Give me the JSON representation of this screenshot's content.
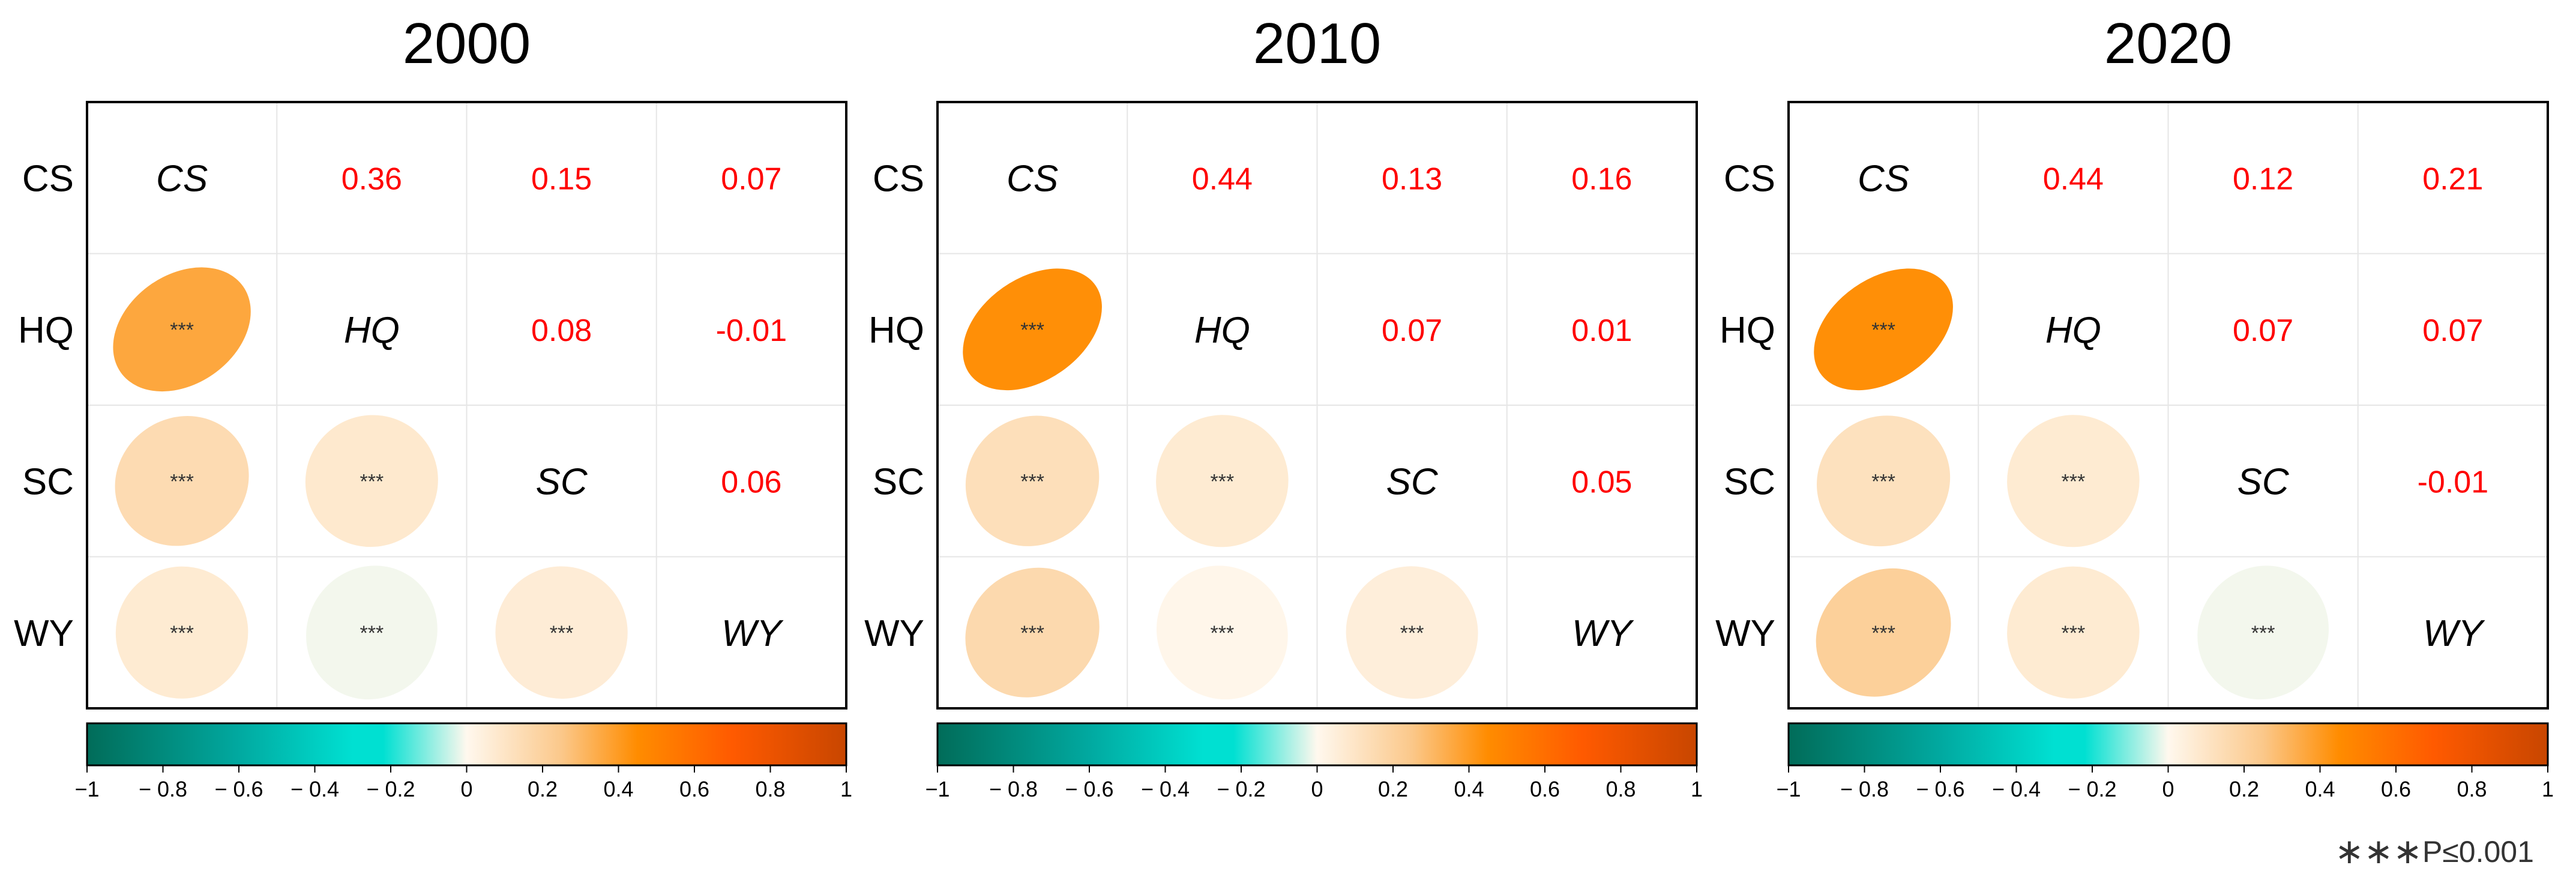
{
  "chart_data": [
    {
      "type": "heatmap",
      "title": "2000",
      "variables": [
        "CS",
        "HQ",
        "SC",
        "WY"
      ],
      "row_labels": [
        "CS",
        "HQ",
        "SC",
        "WY"
      ],
      "diagonal_labels": [
        "CS",
        "HQ",
        "SC",
        "WY"
      ],
      "upper_coefficients": [
        {
          "row": 0,
          "col": 1,
          "value": 0.36,
          "label": "0.36"
        },
        {
          "row": 0,
          "col": 2,
          "value": 0.15,
          "label": "0.15"
        },
        {
          "row": 0,
          "col": 3,
          "value": 0.07,
          "label": "0.07"
        },
        {
          "row": 1,
          "col": 2,
          "value": 0.08,
          "label": "0.08"
        },
        {
          "row": 1,
          "col": 3,
          "value": -0.01,
          "label": "-0.01"
        },
        {
          "row": 2,
          "col": 3,
          "value": 0.06,
          "label": "0.06"
        }
      ],
      "lower_ellipses": [
        {
          "row": 1,
          "col": 0,
          "value": 0.36,
          "sig": "***"
        },
        {
          "row": 2,
          "col": 0,
          "value": 0.15,
          "sig": "***"
        },
        {
          "row": 2,
          "col": 1,
          "value": 0.08,
          "sig": "***"
        },
        {
          "row": 3,
          "col": 0,
          "value": 0.07,
          "sig": "***"
        },
        {
          "row": 3,
          "col": 1,
          "value": -0.01,
          "sig": "***"
        },
        {
          "row": 3,
          "col": 2,
          "value": 0.06,
          "sig": "***"
        }
      ]
    },
    {
      "type": "heatmap",
      "title": "2010",
      "variables": [
        "CS",
        "HQ",
        "SC",
        "WY"
      ],
      "row_labels": [
        "CS",
        "HQ",
        "SC",
        "WY"
      ],
      "diagonal_labels": [
        "CS",
        "HQ",
        "SC",
        "WY"
      ],
      "upper_coefficients": [
        {
          "row": 0,
          "col": 1,
          "value": 0.44,
          "label": "0.44"
        },
        {
          "row": 0,
          "col": 2,
          "value": 0.13,
          "label": "0.13"
        },
        {
          "row": 0,
          "col": 3,
          "value": 0.16,
          "label": "0.16"
        },
        {
          "row": 1,
          "col": 2,
          "value": 0.07,
          "label": "0.07"
        },
        {
          "row": 1,
          "col": 3,
          "value": 0.01,
          "label": "0.01"
        },
        {
          "row": 2,
          "col": 3,
          "value": 0.05,
          "label": "0.05"
        }
      ],
      "lower_ellipses": [
        {
          "row": 1,
          "col": 0,
          "value": 0.44,
          "sig": "***"
        },
        {
          "row": 2,
          "col": 0,
          "value": 0.13,
          "sig": "***"
        },
        {
          "row": 2,
          "col": 1,
          "value": 0.07,
          "sig": "***"
        },
        {
          "row": 3,
          "col": 0,
          "value": 0.16,
          "sig": "***"
        },
        {
          "row": 3,
          "col": 1,
          "value": 0.01,
          "sig": "***"
        },
        {
          "row": 3,
          "col": 2,
          "value": 0.05,
          "sig": "***"
        }
      ]
    },
    {
      "type": "heatmap",
      "title": "2020",
      "variables": [
        "CS",
        "HQ",
        "SC",
        "WY"
      ],
      "row_labels": [
        "CS",
        "HQ",
        "SC",
        "WY"
      ],
      "diagonal_labels": [
        "CS",
        "HQ",
        "SC",
        "WY"
      ],
      "upper_coefficients": [
        {
          "row": 0,
          "col": 1,
          "value": 0.44,
          "label": "0.44"
        },
        {
          "row": 0,
          "col": 2,
          "value": 0.12,
          "label": "0.12"
        },
        {
          "row": 0,
          "col": 3,
          "value": 0.21,
          "label": "0.21"
        },
        {
          "row": 1,
          "col": 2,
          "value": 0.07,
          "label": "0.07"
        },
        {
          "row": 1,
          "col": 3,
          "value": 0.07,
          "label": "0.07"
        },
        {
          "row": 2,
          "col": 3,
          "value": -0.01,
          "label": "-0.01"
        }
      ],
      "lower_ellipses": [
        {
          "row": 1,
          "col": 0,
          "value": 0.44,
          "sig": "***"
        },
        {
          "row": 2,
          "col": 0,
          "value": 0.12,
          "sig": "***"
        },
        {
          "row": 2,
          "col": 1,
          "value": 0.07,
          "sig": "***"
        },
        {
          "row": 3,
          "col": 0,
          "value": 0.21,
          "sig": "***"
        },
        {
          "row": 3,
          "col": 1,
          "value": 0.07,
          "sig": "***"
        },
        {
          "row": 3,
          "col": 2,
          "value": -0.01,
          "sig": "***"
        }
      ]
    }
  ],
  "colorbar": {
    "range": [
      -1,
      1
    ],
    "ticks": [
      -1,
      -0.8,
      -0.6,
      -0.4,
      -0.2,
      0,
      0.2,
      0.4,
      0.6,
      0.8,
      1
    ],
    "tick_labels": [
      "−1",
      "− 0.8",
      "− 0.6",
      "− 0.4",
      "− 0.2",
      "0",
      "0.2",
      "0.4",
      "0.6",
      "0.8",
      "1"
    ],
    "colors": [
      {
        "at": -1.0,
        "color": "#016c59"
      },
      {
        "at": -0.6,
        "color": "#01a9a0"
      },
      {
        "at": -0.3,
        "color": "#00e0d2"
      },
      {
        "at": -0.22,
        "color": "#00e0d2"
      },
      {
        "at": 0.0,
        "color": "#fff8ee"
      },
      {
        "at": 0.25,
        "color": "#fbc88a"
      },
      {
        "at": 0.45,
        "color": "#ff8c00"
      },
      {
        "at": 0.7,
        "color": "#ff5a00"
      },
      {
        "at": 1.0,
        "color": "#c84600"
      }
    ]
  },
  "footnote": {
    "stars": "∗∗∗",
    "text": "P≤0.001"
  }
}
